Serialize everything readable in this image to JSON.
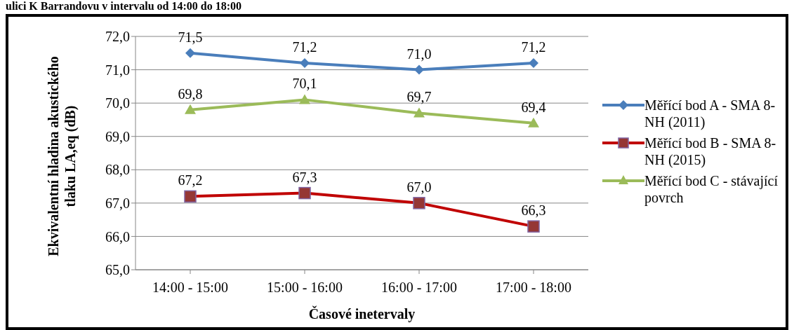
{
  "chart_data": {
    "type": "line",
    "title": "ulici K Barrandovu v intervalu od 14:00 do 18:00",
    "xlabel": "Časové inetervaly",
    "ylabel": "Ekvivalentní hladina akustického tlaku LA,eq (dB)",
    "categories": [
      "14:00 - 15:00",
      "15:00 - 16:00",
      "16:00 - 17:00",
      "17:00 - 18:00"
    ],
    "series": [
      {
        "name": "Měřící bod A - SMA 8-NH (2011)",
        "color": "#4a7ebb",
        "marker": "diamond",
        "values": [
          71.5,
          71.2,
          71.0,
          71.2
        ],
        "value_labels": [
          "71,5",
          "71,2",
          "71,0",
          "71,2"
        ]
      },
      {
        "name": "Měřící bod B - SMA 8-NH (2015)",
        "color": "#c00000",
        "marker": "square",
        "values": [
          67.2,
          67.3,
          67.0,
          66.3
        ],
        "value_labels": [
          "67,2",
          "67,3",
          "67,0",
          "66,3"
        ]
      },
      {
        "name": "Měřící bod C - stávající povrch",
        "color": "#9bbb59",
        "marker": "triangle",
        "values": [
          69.8,
          70.1,
          69.7,
          69.4
        ],
        "value_labels": [
          "69,8",
          "70,1",
          "69,7",
          "69,4"
        ]
      }
    ],
    "ylim": [
      65,
      72
    ],
    "yticks": [
      {
        "value": 65,
        "label": "65,0"
      },
      {
        "value": 66,
        "label": "66,0"
      },
      {
        "value": 67,
        "label": "67,0"
      },
      {
        "value": 68,
        "label": "68,0"
      },
      {
        "value": 69,
        "label": "69,0"
      },
      {
        "value": 70,
        "label": "70,0"
      },
      {
        "value": 71,
        "label": "71,0"
      },
      {
        "value": 72,
        "label": "72,0"
      }
    ],
    "grid": "y",
    "legend": "right"
  }
}
